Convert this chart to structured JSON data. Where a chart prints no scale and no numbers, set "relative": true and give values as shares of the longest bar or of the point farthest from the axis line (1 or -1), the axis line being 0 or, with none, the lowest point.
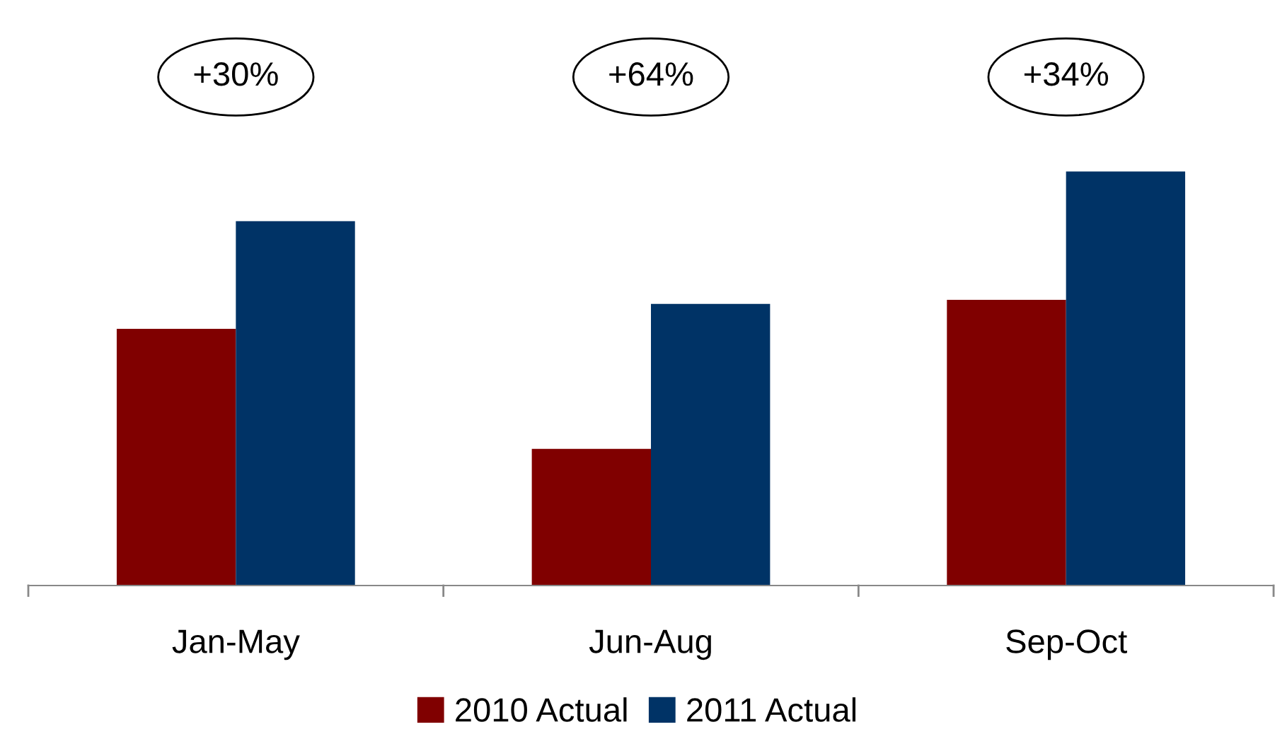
{
  "chart_data": {
    "type": "bar",
    "relative": true,
    "categories": [
      "Jan-May",
      "Jun-Aug",
      "Sep-Oct"
    ],
    "series": [
      {
        "name": "2010 Actual",
        "color": "#800000",
        "values": [
          0.62,
          0.33,
          0.69
        ]
      },
      {
        "name": "2011 Actual",
        "color": "#003366",
        "values": [
          0.88,
          0.68,
          1.0
        ]
      }
    ],
    "annotations": [
      "+30%",
      "+64%",
      "+34%"
    ],
    "legend": "bottom",
    "grid": false
  }
}
